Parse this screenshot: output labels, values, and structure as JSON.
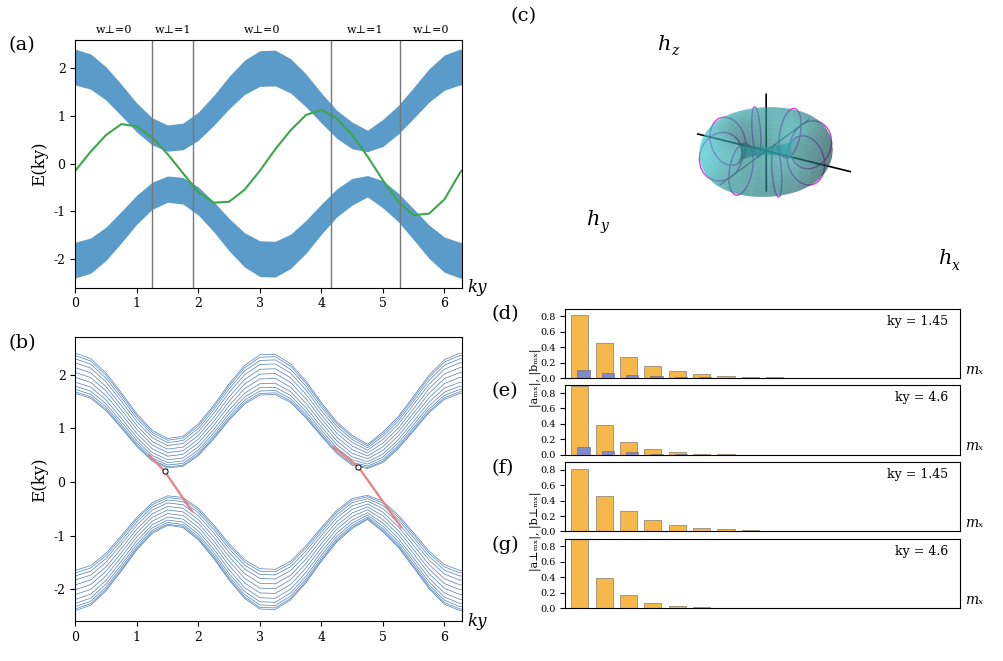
{
  "chart_data": [
    {
      "panel_label": "(a)",
      "type": "band",
      "x": [
        0,
        0.25,
        0.5,
        0.75,
        1.0,
        1.25,
        1.5,
        1.75,
        2.0,
        2.25,
        2.5,
        2.75,
        3.0,
        3.25,
        3.5,
        3.75,
        4.0,
        4.25,
        4.5,
        4.75,
        5.0,
        5.25,
        5.5,
        5.75,
        6.0,
        6.25,
        6.28
      ],
      "bands": [
        {
          "color": "#5b9bc9",
          "upper": [
            2.4,
            2.3,
            2.03,
            1.66,
            1.27,
            0.96,
            0.81,
            0.85,
            1.08,
            1.43,
            1.83,
            2.17,
            2.37,
            2.38,
            2.2,
            1.88,
            1.48,
            1.12,
            0.87,
            0.7,
            0.93,
            1.22,
            1.6,
            1.99,
            2.28,
            2.4,
            2.4
          ],
          "lower": [
            1.65,
            1.56,
            1.33,
            1.0,
            0.66,
            0.39,
            0.26,
            0.29,
            0.49,
            0.8,
            1.15,
            1.45,
            1.62,
            1.63,
            1.48,
            1.19,
            0.85,
            0.53,
            0.31,
            0.25,
            0.36,
            0.62,
            0.95,
            1.29,
            1.54,
            1.65,
            1.65
          ]
        },
        {
          "color": "#5b9bc9",
          "upper": [
            -1.65,
            -1.56,
            -1.33,
            -1.0,
            -0.66,
            -0.39,
            -0.26,
            -0.29,
            -0.49,
            -0.8,
            -1.15,
            -1.45,
            -1.62,
            -1.63,
            -1.48,
            -1.19,
            -0.85,
            -0.53,
            -0.31,
            -0.25,
            -0.36,
            -0.62,
            -0.95,
            -1.29,
            -1.54,
            -1.65,
            -1.65
          ],
          "lower": [
            -2.4,
            -2.3,
            -2.03,
            -1.66,
            -1.27,
            -0.96,
            -0.81,
            -0.85,
            -1.08,
            -1.43,
            -1.83,
            -2.17,
            -2.37,
            -2.38,
            -2.2,
            -1.88,
            -1.48,
            -1.12,
            -0.87,
            -0.7,
            -0.93,
            -1.22,
            -1.6,
            -1.99,
            -2.28,
            -2.4,
            -2.4
          ]
        }
      ],
      "series": [
        {
          "color": "#3aa84a",
          "values": [
            -0.15,
            0.25,
            0.6,
            0.83,
            0.78,
            0.55,
            0.2,
            -0.2,
            -0.6,
            -0.82,
            -0.8,
            -0.55,
            -0.15,
            0.3,
            0.7,
            1.02,
            1.13,
            0.95,
            0.6,
            0.15,
            -0.35,
            -0.8,
            -1.08,
            -1.05,
            -0.75,
            -0.2,
            -0.15
          ]
        }
      ],
      "vlines": [
        1.25,
        1.92,
        4.15,
        5.27
      ],
      "region_labels": [
        "w⊥=0",
        "w⊥=1",
        "w⊥=0",
        "w⊥=1",
        "w⊥=0"
      ],
      "xlabel": "ky",
      "ylabel": "E(ky)",
      "xlim": [
        0,
        6.283
      ],
      "ylim": [
        -2.6,
        2.6
      ],
      "xticks": [
        0,
        1,
        2,
        3,
        4,
        5,
        6
      ],
      "yticks": [
        -2,
        -1,
        0,
        1,
        2
      ]
    },
    {
      "panel_label": "(b)",
      "type": "line",
      "x": [
        0,
        0.25,
        0.5,
        0.75,
        1.0,
        1.25,
        1.5,
        1.75,
        2.0,
        2.25,
        2.5,
        2.75,
        3.0,
        3.25,
        3.5,
        3.75,
        4.0,
        4.25,
        4.5,
        4.75,
        5.0,
        5.25,
        5.5,
        5.75,
        6.0,
        6.25,
        6.28
      ],
      "bands": [
        {
          "color": "#4f7fb8",
          "upper": [
            2.4,
            2.3,
            2.03,
            1.66,
            1.27,
            0.96,
            0.81,
            0.85,
            1.08,
            1.43,
            1.83,
            2.17,
            2.37,
            2.38,
            2.2,
            1.88,
            1.48,
            1.12,
            0.87,
            0.7,
            0.93,
            1.22,
            1.6,
            1.99,
            2.28,
            2.4,
            2.4
          ],
          "lower": [
            1.65,
            1.56,
            1.33,
            1.0,
            0.66,
            0.39,
            0.26,
            0.29,
            0.49,
            0.8,
            1.15,
            1.45,
            1.62,
            1.63,
            1.48,
            1.19,
            0.85,
            0.53,
            0.31,
            0.25,
            0.36,
            0.62,
            0.95,
            1.29,
            1.54,
            1.65,
            1.65
          ]
        },
        {
          "color": "#4f7fb8",
          "upper": [
            -1.65,
            -1.56,
            -1.33,
            -1.0,
            -0.66,
            -0.39,
            -0.26,
            -0.29,
            -0.49,
            -0.8,
            -1.15,
            -1.45,
            -1.62,
            -1.63,
            -1.48,
            -1.19,
            -0.85,
            -0.53,
            -0.31,
            -0.25,
            -0.36,
            -0.62,
            -0.95,
            -1.29,
            -1.54,
            -1.65,
            -1.65
          ],
          "lower": [
            -2.4,
            -2.3,
            -2.03,
            -1.66,
            -1.27,
            -0.96,
            -0.81,
            -0.85,
            -1.08,
            -1.43,
            -1.83,
            -2.17,
            -2.37,
            -2.38,
            -2.2,
            -1.88,
            -1.48,
            -1.12,
            -0.87,
            -0.7,
            -0.93,
            -1.22,
            -1.6,
            -1.99,
            -2.28,
            -2.4,
            -2.4
          ]
        }
      ],
      "subband_fractions": [
        0,
        0.04,
        0.1,
        0.18,
        0.28,
        0.4,
        0.52,
        0.64,
        0.76,
        0.86,
        0.94,
        1
      ],
      "edge_states": [
        {
          "color": "#e8827f",
          "x": [
            1.2,
            1.45,
            1.9
          ],
          "y": [
            0.5,
            0.2,
            -0.55
          ]
        },
        {
          "color": "#e8827f",
          "x": [
            4.2,
            4.6,
            5.3
          ],
          "y": [
            0.65,
            0.28,
            -0.85
          ]
        }
      ],
      "points": {
        "x": [
          1.45,
          4.6
        ],
        "y": [
          0.2,
          0.28
        ]
      },
      "xlabel": "ky",
      "ylabel": "E(ky)",
      "xlim": [
        0,
        6.283
      ],
      "ylim": [
        -2.6,
        2.7
      ],
      "xticks": [
        0,
        1,
        2,
        3,
        4,
        5,
        6
      ],
      "yticks": [
        -2,
        -1,
        0,
        1,
        2
      ]
    },
    {
      "panel_label": "(c)",
      "type": "diagram",
      "axis_labels": [
        {
          "base": "h",
          "sub": "z"
        },
        {
          "base": "h",
          "sub": "y"
        },
        {
          "base": "h",
          "sub": "x"
        }
      ]
    },
    {
      "panel_label": "(d)",
      "type": "bar",
      "categories": [
        null,
        null,
        null,
        null,
        null,
        null,
        null,
        null,
        null,
        null,
        null,
        null,
        null,
        null,
        null,
        null
      ],
      "series": [
        {
          "color": "#f7b84b",
          "values": [
            0.82,
            0.46,
            0.27,
            0.16,
            0.09,
            0.05,
            0.03,
            0.018,
            0.01,
            0.006,
            0.003,
            0.002,
            0.001,
            0,
            0,
            0
          ]
        },
        {
          "color": "#7f8bcc",
          "values": [
            0.1,
            0.06,
            0.04,
            0.025,
            0.015,
            0.008,
            0.005,
            0.003,
            0.002,
            0.001,
            0,
            0,
            0,
            0,
            0,
            0
          ]
        }
      ],
      "ylim": [
        0,
        0.9
      ],
      "yticks": [
        {
          "value": 0,
          "label": "0.0"
        },
        0.2,
        0.4,
        0.6,
        0.8
      ],
      "tick_labels": "y",
      "annotation": "ky = 1.45",
      "xlabel": "mₓ",
      "ylabel": "|aₘₓ|, |bₘₓ|"
    },
    {
      "panel_label": "(e)",
      "type": "bar",
      "categories": [
        null,
        null,
        null,
        null,
        null,
        null,
        null,
        null,
        null,
        null,
        null,
        null,
        null,
        null,
        null,
        null
      ],
      "series": [
        {
          "color": "#f7b84b",
          "values": [
            0.89,
            0.39,
            0.17,
            0.07,
            0.03,
            0.013,
            0.006,
            0.003,
            0.001,
            0,
            0,
            0,
            0,
            0,
            0,
            0
          ]
        },
        {
          "color": "#7f8bcc",
          "values": [
            0.1,
            0.05,
            0.03,
            0.015,
            0.007,
            0.003,
            0.001,
            0,
            0,
            0,
            0,
            0,
            0,
            0,
            0,
            0
          ]
        }
      ],
      "ylim": [
        0,
        0.9
      ],
      "yticks": [
        {
          "value": 0,
          "label": "0.0"
        },
        0.2,
        0.4,
        0.6,
        0.8
      ],
      "tick_labels": "y",
      "annotation": "ky = 4.6",
      "xlabel": "mₓ"
    },
    {
      "panel_label": "(f)",
      "type": "bar",
      "categories": [
        null,
        null,
        null,
        null,
        null,
        null,
        null,
        null,
        null,
        null,
        null,
        null,
        null,
        null,
        null,
        null
      ],
      "series": [
        {
          "color": "#f7b84b",
          "values": [
            0.81,
            0.46,
            0.26,
            0.15,
            0.09,
            0.05,
            0.03,
            0.017,
            0.01,
            0.005,
            0.003,
            0.002,
            0.001,
            0,
            0,
            0
          ]
        },
        {
          "color": "#7f8bcc",
          "values": [
            0,
            0,
            0,
            0,
            0,
            0,
            0,
            0,
            0,
            0,
            0,
            0,
            0,
            0,
            0,
            0
          ]
        }
      ],
      "ylim": [
        0,
        0.9
      ],
      "yticks": [
        {
          "value": 0,
          "label": "0.0"
        },
        0.2,
        0.4,
        0.6,
        0.8
      ],
      "tick_labels": "y",
      "annotation": "ky = 1.45",
      "xlabel": "mₓ",
      "ylabel": "|a⊥ₘₓ|, |b⊥ₘₓ|"
    },
    {
      "panel_label": "(g)",
      "type": "bar",
      "categories": [
        null,
        null,
        null,
        null,
        null,
        null,
        null,
        null,
        null,
        null,
        null,
        null,
        null,
        null,
        null,
        null
      ],
      "series": [
        {
          "color": "#f7b84b",
          "values": [
            0.89,
            0.39,
            0.17,
            0.07,
            0.03,
            0.013,
            0.006,
            0.003,
            0.001,
            0,
            0,
            0,
            0,
            0,
            0,
            0
          ]
        },
        {
          "color": "#7f8bcc",
          "values": [
            0,
            0,
            0,
            0,
            0,
            0,
            0,
            0,
            0,
            0,
            0,
            0,
            0,
            0,
            0,
            0
          ]
        }
      ],
      "ylim": [
        0,
        0.9
      ],
      "yticks": [
        {
          "value": 0,
          "label": "0.0"
        },
        0.2,
        0.4,
        0.6,
        0.8
      ],
      "tick_labels": "y",
      "annotation": "ky = 4.6",
      "xlabel": "mₓ"
    }
  ]
}
